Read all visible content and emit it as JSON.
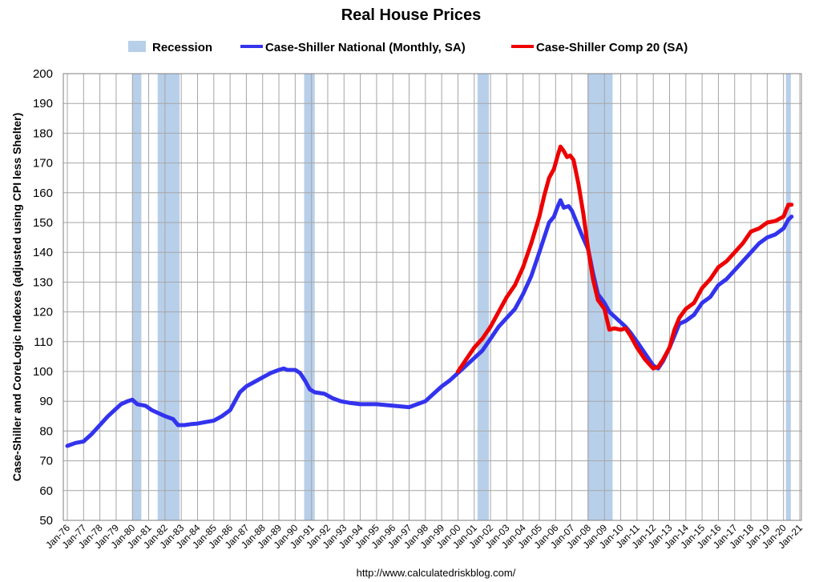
{
  "chart_data": {
    "type": "line",
    "title": "Real House Prices",
    "ylabel": "Case-Shiller and CoreLogic Indexes (adjusted using CPI less Shelter)",
    "xlabel": "",
    "source": "http://www.calculatedriskblog.com/",
    "ylim": [
      50,
      200
    ],
    "yticks": [
      50,
      60,
      70,
      80,
      90,
      100,
      110,
      120,
      130,
      140,
      150,
      160,
      170,
      180,
      190,
      200
    ],
    "xlim": [
      1976,
      2021
    ],
    "xtick_labels": [
      "Jan-76",
      "Jan-77",
      "Jan-78",
      "Jan-79",
      "Jan-80",
      "Jan-81",
      "Jan-82",
      "Jan-83",
      "Jan-84",
      "Jan-85",
      "Jan-86",
      "Jan-87",
      "Jan-88",
      "Jan-89",
      "Jan-90",
      "Jan-91",
      "Jan-92",
      "Jan-93",
      "Jan-94",
      "Jan-95",
      "Jan-96",
      "Jan-97",
      "Jan-98",
      "Jan-99",
      "Jan-00",
      "Jan-01",
      "Jan-02",
      "Jan-03",
      "Jan-04",
      "Jan-05",
      "Jan-06",
      "Jan-07",
      "Jan-08",
      "Jan-09",
      "Jan-10",
      "Jan-11",
      "Jan-12",
      "Jan-13",
      "Jan-14",
      "Jan-15",
      "Jan-16",
      "Jan-17",
      "Jan-18",
      "Jan-19",
      "Jan-20",
      "Jan-21"
    ],
    "legend": {
      "recession": "Recession",
      "national": "Case-Shiller National (Monthly, SA)",
      "comp20": "Case-Shiller Comp 20  (SA)"
    },
    "colors": {
      "recession": "#b8cfea",
      "national": "#3333ee",
      "comp20": "#ee0000"
    },
    "recessions": [
      [
        1980.0,
        1980.55
      ],
      [
        1981.55,
        1982.9
      ],
      [
        1990.55,
        1991.2
      ],
      [
        2001.2,
        2001.9
      ],
      [
        2007.95,
        2009.5
      ],
      [
        2020.15,
        2020.45
      ]
    ],
    "series": [
      {
        "name": "Case-Shiller National (Monthly, SA)",
        "points": [
          [
            1976.0,
            75
          ],
          [
            1976.5,
            76
          ],
          [
            1977.0,
            76.5
          ],
          [
            1977.5,
            79
          ],
          [
            1978.0,
            82
          ],
          [
            1978.5,
            85
          ],
          [
            1979.0,
            87.5
          ],
          [
            1979.3,
            89
          ],
          [
            1979.7,
            90
          ],
          [
            1980.0,
            90.5
          ],
          [
            1980.3,
            89
          ],
          [
            1980.8,
            88.5
          ],
          [
            1981.2,
            87
          ],
          [
            1981.6,
            86
          ],
          [
            1982.0,
            85
          ],
          [
            1982.5,
            84
          ],
          [
            1982.8,
            82
          ],
          [
            1983.2,
            82
          ],
          [
            1983.6,
            82.3
          ],
          [
            1984.0,
            82.5
          ],
          [
            1984.5,
            83
          ],
          [
            1985.0,
            83.5
          ],
          [
            1985.5,
            85
          ],
          [
            1986.0,
            87
          ],
          [
            1986.3,
            90
          ],
          [
            1986.6,
            93
          ],
          [
            1987.0,
            95
          ],
          [
            1987.5,
            96.5
          ],
          [
            1988.0,
            98
          ],
          [
            1988.5,
            99.5
          ],
          [
            1989.0,
            100.5
          ],
          [
            1989.3,
            101
          ],
          [
            1989.5,
            100.5
          ],
          [
            1990.0,
            100.5
          ],
          [
            1990.3,
            99.5
          ],
          [
            1990.6,
            97
          ],
          [
            1990.9,
            94
          ],
          [
            1991.2,
            93
          ],
          [
            1991.8,
            92.5
          ],
          [
            1992.3,
            91
          ],
          [
            1992.8,
            90
          ],
          [
            1993.3,
            89.5
          ],
          [
            1994.0,
            89
          ],
          [
            1995.0,
            89
          ],
          [
            1996.0,
            88.5
          ],
          [
            1997.0,
            88
          ],
          [
            1997.5,
            89
          ],
          [
            1998.0,
            90
          ],
          [
            1998.5,
            92.5
          ],
          [
            1999.0,
            95
          ],
          [
            1999.5,
            97
          ],
          [
            2000.0,
            99.5
          ],
          [
            2000.5,
            102
          ],
          [
            2001.0,
            104.5
          ],
          [
            2001.5,
            107
          ],
          [
            2002.0,
            111
          ],
          [
            2002.5,
            115
          ],
          [
            2003.0,
            118
          ],
          [
            2003.5,
            121
          ],
          [
            2004.0,
            126
          ],
          [
            2004.5,
            132
          ],
          [
            2005.0,
            140
          ],
          [
            2005.3,
            145
          ],
          [
            2005.6,
            150
          ],
          [
            2005.9,
            152
          ],
          [
            2006.1,
            155
          ],
          [
            2006.3,
            157.5
          ],
          [
            2006.5,
            155
          ],
          [
            2006.8,
            155.5
          ],
          [
            2007.0,
            154
          ],
          [
            2007.3,
            150
          ],
          [
            2007.6,
            146
          ],
          [
            2008.0,
            141
          ],
          [
            2008.3,
            133
          ],
          [
            2008.6,
            126
          ],
          [
            2009.0,
            123
          ],
          [
            2009.3,
            120
          ],
          [
            2009.6,
            118.5
          ],
          [
            2010.0,
            116.5
          ],
          [
            2010.3,
            115
          ],
          [
            2010.6,
            113
          ],
          [
            2011.0,
            110
          ],
          [
            2011.5,
            106
          ],
          [
            2012.0,
            102
          ],
          [
            2012.3,
            101
          ],
          [
            2012.6,
            103.5
          ],
          [
            2013.0,
            108
          ],
          [
            2013.3,
            112
          ],
          [
            2013.6,
            116
          ],
          [
            2014.0,
            117
          ],
          [
            2014.5,
            119
          ],
          [
            2015.0,
            123
          ],
          [
            2015.5,
            125
          ],
          [
            2016.0,
            129
          ],
          [
            2016.5,
            131
          ],
          [
            2017.0,
            134
          ],
          [
            2017.5,
            137
          ],
          [
            2018.0,
            140
          ],
          [
            2018.5,
            143
          ],
          [
            2019.0,
            145
          ],
          [
            2019.5,
            146
          ],
          [
            2020.0,
            148
          ],
          [
            2020.3,
            151
          ],
          [
            2020.5,
            152
          ]
        ]
      },
      {
        "name": "Case-Shiller Comp 20  (SA)",
        "points": [
          [
            2000.0,
            100
          ],
          [
            2000.5,
            104
          ],
          [
            2001.0,
            108
          ],
          [
            2001.5,
            111
          ],
          [
            2002.0,
            115
          ],
          [
            2002.5,
            120
          ],
          [
            2003.0,
            125
          ],
          [
            2003.5,
            129
          ],
          [
            2004.0,
            135
          ],
          [
            2004.5,
            143
          ],
          [
            2005.0,
            152
          ],
          [
            2005.3,
            159
          ],
          [
            2005.6,
            165
          ],
          [
            2005.9,
            168
          ],
          [
            2006.1,
            172
          ],
          [
            2006.3,
            175.5
          ],
          [
            2006.5,
            174
          ],
          [
            2006.7,
            172
          ],
          [
            2006.9,
            172.5
          ],
          [
            2007.1,
            171
          ],
          [
            2007.4,
            163
          ],
          [
            2007.7,
            153
          ],
          [
            2008.0,
            141
          ],
          [
            2008.3,
            131
          ],
          [
            2008.6,
            124
          ],
          [
            2009.0,
            121
          ],
          [
            2009.3,
            114
          ],
          [
            2009.6,
            114.5
          ],
          [
            2010.0,
            114
          ],
          [
            2010.3,
            114.5
          ],
          [
            2010.6,
            112
          ],
          [
            2011.0,
            108
          ],
          [
            2011.5,
            104
          ],
          [
            2012.0,
            101
          ],
          [
            2012.3,
            101.5
          ],
          [
            2012.6,
            104
          ],
          [
            2013.0,
            108
          ],
          [
            2013.3,
            114
          ],
          [
            2013.6,
            118
          ],
          [
            2014.0,
            121
          ],
          [
            2014.5,
            123
          ],
          [
            2015.0,
            128
          ],
          [
            2015.5,
            131
          ],
          [
            2016.0,
            135
          ],
          [
            2016.5,
            137
          ],
          [
            2017.0,
            140
          ],
          [
            2017.5,
            143
          ],
          [
            2018.0,
            147
          ],
          [
            2018.5,
            148
          ],
          [
            2019.0,
            150
          ],
          [
            2019.5,
            150.5
          ],
          [
            2020.0,
            152
          ],
          [
            2020.3,
            156
          ],
          [
            2020.5,
            156
          ]
        ]
      }
    ]
  }
}
